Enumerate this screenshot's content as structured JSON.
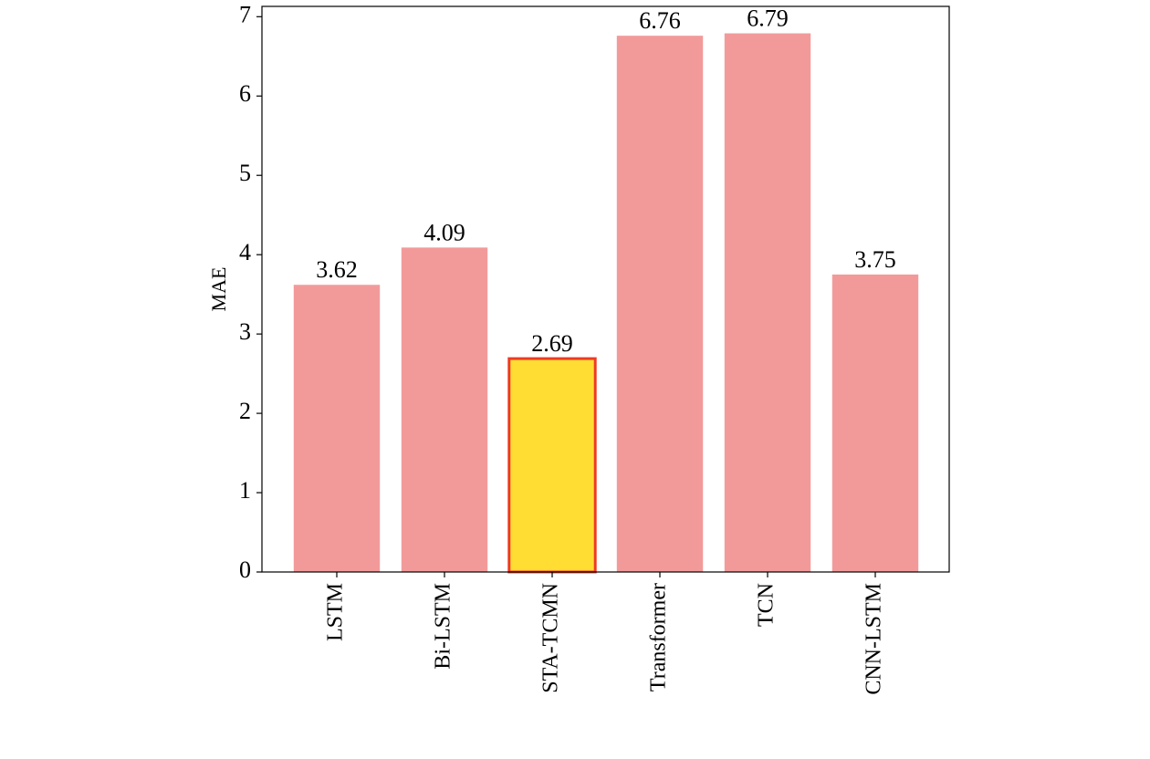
{
  "chart_data": {
    "type": "bar",
    "y_label": "MAE",
    "categories": [
      "LSTM",
      "Bi-LSTM",
      "STA-TCMN",
      "Transformer",
      "TCN",
      "CNN-LSTM"
    ],
    "values": [
      3.62,
      4.09,
      2.69,
      6.76,
      6.79,
      3.75
    ],
    "colors": [
      "#f29a9a",
      "#f29a9a",
      "#ffdd33",
      "#f29a9a",
      "#f29a9a",
      "#f29a9a"
    ],
    "edge_colors": [
      null,
      null,
      "#ee3a26",
      null,
      null,
      null
    ],
    "ylim": [
      0,
      7.13
    ],
    "yticks": [
      0,
      1,
      2,
      3,
      4,
      5,
      6,
      7
    ],
    "grid": false
  }
}
